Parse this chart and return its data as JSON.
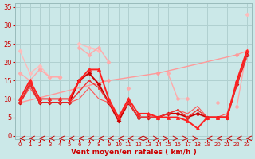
{
  "xlabel": "Vent moyen/en rafales ( km/h )",
  "xlim": [
    -0.5,
    23.5
  ],
  "ylim": [
    -1,
    36
  ],
  "xticks": [
    0,
    1,
    2,
    3,
    4,
    5,
    6,
    7,
    8,
    9,
    10,
    11,
    12,
    13,
    14,
    15,
    16,
    17,
    18,
    19,
    20,
    21,
    22,
    23
  ],
  "yticks": [
    0,
    5,
    10,
    15,
    20,
    25,
    30,
    35
  ],
  "bg_color": "#cbe8e8",
  "grid_color": "#b0d0d0",
  "series": [
    {
      "x": [
        0,
        1,
        2,
        3,
        4,
        5,
        6,
        7,
        8,
        9,
        10,
        11,
        12,
        13,
        14,
        15,
        16,
        17,
        18,
        19,
        20,
        21,
        22,
        23
      ],
      "y": [
        23,
        17,
        19,
        16,
        16,
        null,
        25,
        24,
        23,
        null,
        null,
        null,
        null,
        null,
        null,
        null,
        null,
        null,
        null,
        null,
        null,
        null,
        null,
        33
      ],
      "color": "#ffbbbb",
      "lw": 1.0,
      "marker": "D",
      "ms": 2.5,
      "zorder": 2
    },
    {
      "x": [
        0,
        1,
        2,
        3,
        4,
        5,
        6,
        7,
        8,
        9,
        10,
        11,
        12,
        13,
        14,
        15,
        16,
        17,
        18,
        19,
        20,
        21,
        22,
        23
      ],
      "y": [
        17,
        15,
        18,
        16,
        16,
        null,
        24,
        22,
        24,
        20,
        null,
        13,
        null,
        null,
        null,
        17,
        10,
        10,
        null,
        null,
        9,
        null,
        8,
        23
      ],
      "color": "#ffaaaa",
      "lw": 1.0,
      "marker": "D",
      "ms": 2.5,
      "zorder": 2
    },
    {
      "x": [
        0,
        9,
        14,
        22,
        23
      ],
      "y": [
        9,
        15,
        17,
        22,
        23
      ],
      "color": "#ff9999",
      "lw": 1.0,
      "marker": "D",
      "ms": 2.5,
      "zorder": 2
    },
    {
      "x": [
        0,
        1,
        2,
        3,
        4,
        5,
        6,
        7,
        8,
        9,
        10,
        11,
        12,
        13,
        14,
        15,
        16,
        17,
        18,
        19,
        20,
        21,
        22,
        23
      ],
      "y": [
        10,
        15,
        10,
        10,
        10,
        10,
        15,
        18,
        18,
        10,
        5,
        10,
        6,
        6,
        5,
        5,
        5,
        4,
        2,
        5,
        5,
        5,
        15,
        23
      ],
      "color": "#ff2020",
      "lw": 1.4,
      "marker": "^",
      "ms": 3,
      "zorder": 4
    },
    {
      "x": [
        0,
        1,
        2,
        3,
        4,
        5,
        6,
        7,
        8,
        9,
        10,
        11,
        12,
        13,
        14,
        15,
        16,
        17,
        18,
        19,
        20,
        21,
        22,
        23
      ],
      "y": [
        9,
        14,
        9,
        9,
        9,
        9,
        15,
        17,
        14,
        9,
        4,
        9,
        5,
        5,
        5,
        6,
        6,
        5,
        6,
        5,
        5,
        5,
        14,
        22
      ],
      "color": "#cc0000",
      "lw": 1.4,
      "marker": "D",
      "ms": 2.5,
      "zorder": 3
    },
    {
      "x": [
        0,
        1,
        2,
        3,
        4,
        5,
        6,
        7,
        8,
        9,
        10,
        11,
        12,
        13,
        14,
        15,
        16,
        17,
        18,
        19,
        20,
        21,
        22,
        23
      ],
      "y": [
        9,
        14,
        9,
        9,
        9,
        9,
        12,
        15,
        13,
        9,
        5,
        9,
        5,
        5,
        5,
        6,
        7,
        5,
        7,
        5,
        5,
        5,
        14,
        22
      ],
      "color": "#ee3333",
      "lw": 1.0,
      "marker": "s",
      "ms": 2,
      "zorder": 3
    },
    {
      "x": [
        0,
        1,
        2,
        3,
        4,
        5,
        6,
        7,
        8,
        9,
        10,
        11,
        12,
        13,
        14,
        15,
        16,
        17,
        18,
        19,
        20,
        21,
        22,
        23
      ],
      "y": [
        9,
        13,
        9,
        9,
        9,
        9,
        10,
        13,
        10,
        9,
        5,
        9,
        5,
        5,
        5,
        6,
        7,
        6,
        8,
        5,
        5,
        6,
        14,
        21
      ],
      "color": "#ff5555",
      "lw": 0.8,
      "marker": null,
      "ms": 0,
      "zorder": 2
    }
  ],
  "arrow_directions": [
    0,
    0,
    0,
    0,
    0,
    0,
    0,
    0,
    0,
    0,
    0,
    0,
    0,
    1,
    1,
    1,
    1,
    1,
    1,
    0,
    0,
    0,
    0,
    0
  ],
  "arrow_color": "#cc0000"
}
